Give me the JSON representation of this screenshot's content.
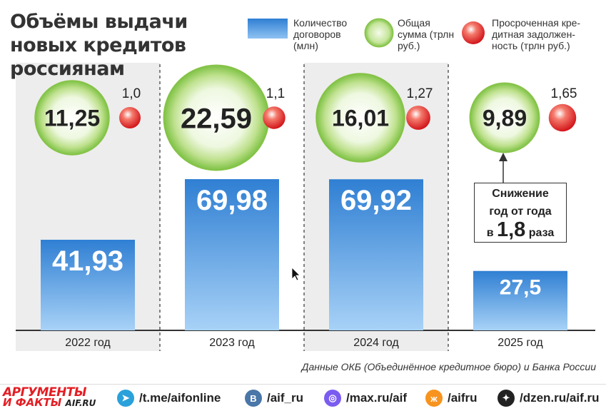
{
  "title": "Объёмы выдачи новых кредитов россиянам",
  "legend": [
    {
      "label": "Количество договоров (млн)",
      "key": "contracts",
      "color": "#2f7fd3"
    },
    {
      "label": "Общая сумма (трлн руб.)",
      "key": "amount",
      "color": "#7cc142"
    },
    {
      "label": "Просроченная кре-дитная задолжен-ность (трлн руб.)",
      "key": "overdue",
      "color": "#e12a20"
    }
  ],
  "chart_data": {
    "type": "bar",
    "title": "Объёмы выдачи новых кредитов россиянам",
    "categories": [
      "2022 год",
      "2023 год",
      "2024 год",
      "2025 год"
    ],
    "series": [
      {
        "name": "Количество договоров (млн)",
        "values": [
          41.93,
          69.98,
          69.92,
          27.5
        ],
        "labels": [
          "41,93",
          "69,98",
          "69,92",
          "27,5"
        ],
        "color": "#2f7fd3"
      },
      {
        "name": "Общая сумма (трлн руб.)",
        "values": [
          11.25,
          22.59,
          16.01,
          9.89
        ],
        "labels": [
          "11,25",
          "22,59",
          "16,01",
          "9,89"
        ],
        "color": "#7cc142"
      },
      {
        "name": "Просроченная кредитная задолженность (трлн руб.)",
        "values": [
          1.0,
          1.1,
          1.27,
          1.65
        ],
        "labels": [
          "1,0",
          "1,1",
          "1,27",
          "1,65"
        ],
        "color": "#e12a20"
      }
    ],
    "annotation": {
      "line1": "Снижение",
      "line2": "год от года",
      "prefix": "в",
      "value": "1,8",
      "suffix": "раза"
    },
    "source": "Данные ОКБ (Объединённое кредитное бюро) и Банка России"
  },
  "footer": {
    "logo_line1": "АРГУМЕНТЫ",
    "logo_line2": "И ФАКТЫ",
    "logo_domain": "AIF.RU",
    "social": [
      {
        "icon": "telegram-icon",
        "label": "/t.me/aifonline",
        "color": "#2aa1da",
        "glyph": "➤"
      },
      {
        "icon": "vk-icon",
        "label": "/aif_ru",
        "color": "#4a76a8",
        "glyph": "B"
      },
      {
        "icon": "max-icon",
        "label": "/max.ru/aif",
        "color": "#7b5cf0",
        "glyph": "◎"
      },
      {
        "icon": "ok-icon",
        "label": "/aifru",
        "color": "#f7931e",
        "glyph": "ж"
      },
      {
        "icon": "dzen-icon",
        "label": "/dzen.ru/aif.ru",
        "color": "#222222",
        "glyph": "✦"
      }
    ]
  }
}
